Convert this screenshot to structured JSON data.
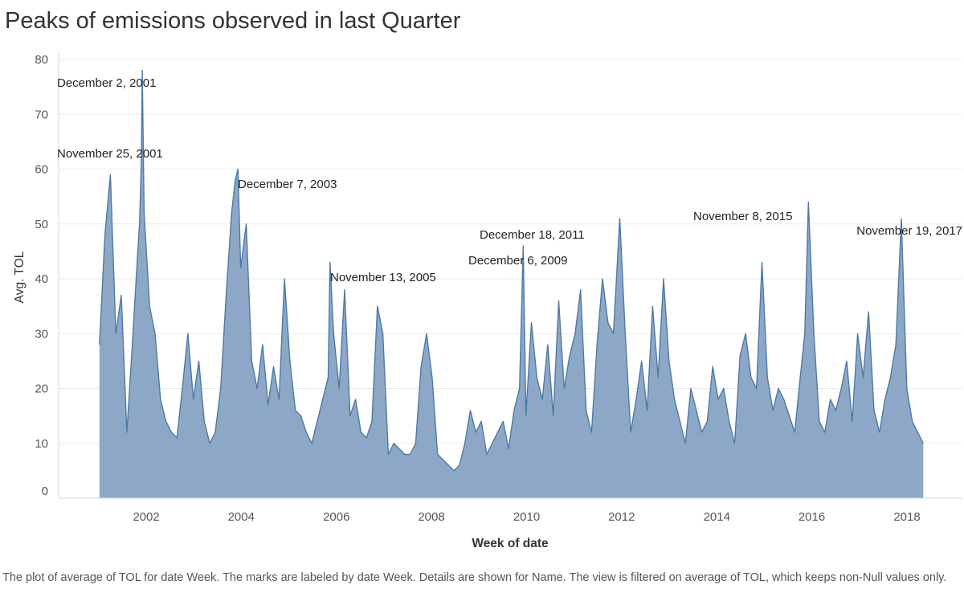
{
  "title": "Peaks of emissions observed in last Quarter",
  "caption": "The plot of average of TOL for date Week.  The marks are labeled by date Week.  Details are shown for Name. The view is filtered on average of TOL, which keeps non-Null values only.",
  "colors": {
    "series_fill": "#87a3c4",
    "series_line": "#4e79a7",
    "grid": "#ebebeb"
  },
  "chart_data": {
    "type": "area",
    "title": "Peaks of emissions observed in last Quarter",
    "xlabel": "Week of date",
    "ylabel": "Avg. TOL",
    "xlim": [
      "2001-01-01",
      "2018-06-01"
    ],
    "ylim": [
      0,
      80
    ],
    "x_ticks": [
      "2002",
      "2004",
      "2006",
      "2008",
      "2010",
      "2012",
      "2014",
      "2016",
      "2018"
    ],
    "y_ticks": [
      0,
      10,
      20,
      30,
      40,
      50,
      60,
      70,
      80
    ],
    "grid": "horizontal",
    "annotations": [
      {
        "label": "December 2, 2001",
        "date": "2001-12-02",
        "value": 78
      },
      {
        "label": "November 25, 2001",
        "date": "2001-11-25",
        "value": 62
      },
      {
        "label": "December 7, 2003",
        "date": "2003-12-07",
        "value": 60
      },
      {
        "label": "November 13, 2005",
        "date": "2005-11-13",
        "value": 43
      },
      {
        "label": "December 6, 2009",
        "date": "2009-12-06",
        "value": 46
      },
      {
        "label": "December 18, 2011",
        "date": "2011-12-18",
        "value": 51
      },
      {
        "label": "November 8, 2015",
        "date": "2015-11-08",
        "value": 54
      },
      {
        "label": "November 19, 2017",
        "date": "2017-11-19",
        "value": 51
      }
    ],
    "series": [
      {
        "x": [
          "2001-01-07",
          "2001-02-18",
          "2001-04-01",
          "2001-05-13",
          "2001-06-24",
          "2001-08-05",
          "2001-09-16",
          "2001-10-28",
          "2001-11-11",
          "2001-11-25",
          "2001-12-02",
          "2001-12-16",
          "2002-01-27",
          "2002-03-10",
          "2002-04-21",
          "2002-06-02",
          "2002-07-14",
          "2002-08-25",
          "2002-10-06",
          "2002-11-17",
          "2002-12-29",
          "2003-02-09",
          "2003-03-23",
          "2003-05-04",
          "2003-06-15",
          "2003-07-27",
          "2003-09-07",
          "2003-10-19",
          "2003-11-16",
          "2003-12-07",
          "2003-12-28",
          "2004-02-08",
          "2004-03-21",
          "2004-05-02",
          "2004-06-13",
          "2004-07-25",
          "2004-09-05",
          "2004-10-17",
          "2004-11-28",
          "2005-01-09",
          "2005-02-20",
          "2005-04-03",
          "2005-05-15",
          "2005-06-26",
          "2005-08-07",
          "2005-09-18",
          "2005-10-30",
          "2005-11-13",
          "2005-12-11",
          "2006-01-22",
          "2006-03-05",
          "2006-04-16",
          "2006-05-28",
          "2006-07-09",
          "2006-08-20",
          "2006-10-01",
          "2006-11-12",
          "2006-12-24",
          "2007-02-04",
          "2007-03-18",
          "2007-04-29",
          "2007-06-10",
          "2007-07-22",
          "2007-09-02",
          "2007-10-14",
          "2007-11-25",
          "2008-01-06",
          "2008-02-17",
          "2008-03-30",
          "2008-05-11",
          "2008-06-22",
          "2008-08-03",
          "2008-09-14",
          "2008-10-26",
          "2008-12-07",
          "2009-01-18",
          "2009-03-01",
          "2009-04-12",
          "2009-05-24",
          "2009-07-05",
          "2009-08-16",
          "2009-09-27",
          "2009-11-08",
          "2009-12-06",
          "2009-12-27",
          "2010-02-07",
          "2010-03-21",
          "2010-05-02",
          "2010-06-13",
          "2010-07-25",
          "2010-09-05",
          "2010-10-17",
          "2010-11-28",
          "2011-01-09",
          "2011-02-20",
          "2011-04-03",
          "2011-05-15",
          "2011-06-26",
          "2011-08-07",
          "2011-09-18",
          "2011-10-30",
          "2011-12-18",
          "2012-01-29",
          "2012-03-11",
          "2012-04-22",
          "2012-06-03",
          "2012-07-15",
          "2012-08-26",
          "2012-10-07",
          "2012-11-18",
          "2012-12-30",
          "2013-02-10",
          "2013-03-24",
          "2013-05-05",
          "2013-06-16",
          "2013-07-28",
          "2013-09-08",
          "2013-10-20",
          "2013-12-01",
          "2014-01-12",
          "2014-02-23",
          "2014-04-06",
          "2014-05-18",
          "2014-06-29",
          "2014-08-10",
          "2014-09-21",
          "2014-11-02",
          "2014-12-14",
          "2015-01-25",
          "2015-03-08",
          "2015-04-19",
          "2015-05-31",
          "2015-07-12",
          "2015-08-23",
          "2015-10-04",
          "2015-11-08",
          "2015-12-06",
          "2016-01-17",
          "2016-02-28",
          "2016-04-10",
          "2016-05-22",
          "2016-07-03",
          "2016-08-14",
          "2016-09-25",
          "2016-11-06",
          "2016-12-18",
          "2017-01-29",
          "2017-03-12",
          "2017-04-23",
          "2017-06-04",
          "2017-07-16",
          "2017-08-27",
          "2017-10-08",
          "2017-11-19",
          "2017-12-31",
          "2018-02-11",
          "2018-03-25",
          "2018-05-06"
        ],
        "values": [
          28,
          48,
          59,
          30,
          37,
          12,
          28,
          45,
          50,
          62,
          78,
          52,
          35,
          30,
          18,
          14,
          12,
          11,
          20,
          30,
          18,
          25,
          14,
          10,
          12,
          20,
          37,
          52,
          58,
          60,
          42,
          50,
          25,
          20,
          28,
          17,
          24,
          18,
          40,
          25,
          16,
          15,
          12,
          10,
          14,
          18,
          22,
          43,
          30,
          20,
          38,
          15,
          18,
          12,
          11,
          14,
          35,
          30,
          8,
          10,
          9,
          8,
          8,
          10,
          24,
          30,
          22,
          8,
          7,
          6,
          5,
          6,
          10,
          16,
          12,
          14,
          8,
          10,
          12,
          14,
          9,
          16,
          20,
          46,
          15,
          32,
          22,
          18,
          28,
          15,
          36,
          20,
          26,
          30,
          38,
          16,
          12,
          28,
          40,
          32,
          30,
          51,
          30,
          12,
          18,
          25,
          16,
          35,
          22,
          40,
          25,
          18,
          14,
          10,
          20,
          16,
          12,
          14,
          24,
          18,
          20,
          14,
          10,
          26,
          30,
          22,
          20,
          43,
          22,
          16,
          20,
          18,
          15,
          12,
          22,
          30,
          54,
          30,
          14,
          12,
          18,
          16,
          20,
          25,
          14,
          30,
          22,
          34,
          16,
          12,
          18,
          22,
          28,
          51,
          20,
          14,
          12,
          10
        ]
      }
    ]
  },
  "axis": {
    "x_title": "Week of date",
    "y_title": "Avg. TOL"
  }
}
